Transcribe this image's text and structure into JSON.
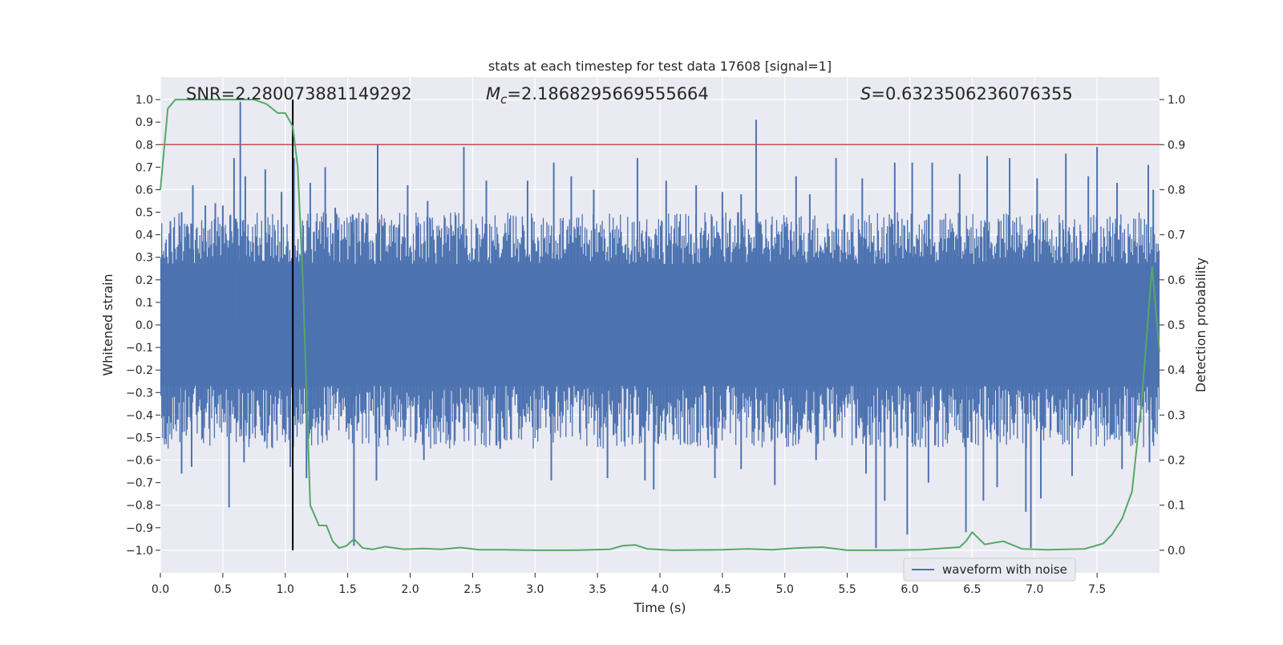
{
  "chart_data": {
    "type": "line",
    "title": "stats at each timestep for test data 17608 [signal=1]",
    "xlabel": "Time (s)",
    "ylabel": "Whitened strain",
    "y2label": "Detection probability",
    "xlim": [
      0.0,
      8.0
    ],
    "ylim": [
      -1.1,
      1.1
    ],
    "y2lim": [
      -0.05,
      1.05
    ],
    "xticks": [
      0.0,
      0.5,
      1.0,
      1.5,
      2.0,
      2.5,
      3.0,
      3.5,
      4.0,
      4.5,
      5.0,
      5.5,
      6.0,
      6.5,
      7.0,
      7.5
    ],
    "xtick_labels": [
      "0.0",
      "0.5",
      "1.0",
      "1.5",
      "2.0",
      "2.5",
      "3.0",
      "3.5",
      "4.0",
      "4.5",
      "5.0",
      "5.5",
      "6.0",
      "6.5",
      "7.0",
      "7.5"
    ],
    "yticks": [
      -1.0,
      -0.9,
      -0.8,
      -0.7,
      -0.6,
      -0.5,
      -0.4,
      -0.3,
      -0.2,
      -0.1,
      0.0,
      0.1,
      0.2,
      0.3,
      0.4,
      0.5,
      0.6,
      0.7,
      0.8,
      0.9,
      1.0
    ],
    "ytick_labels": [
      "−1.0",
      "−0.9",
      "−0.8",
      "−0.7",
      "−0.6",
      "−0.5",
      "−0.4",
      "−0.3",
      "−0.2",
      "−0.1",
      "0.0",
      "0.1",
      "0.2",
      "0.3",
      "0.4",
      "0.5",
      "0.6",
      "0.7",
      "0.8",
      "0.9",
      "1.0"
    ],
    "y2ticks": [
      0.0,
      0.1,
      0.2,
      0.3,
      0.4,
      0.5,
      0.6,
      0.7,
      0.8,
      0.9,
      1.0
    ],
    "y2tick_labels": [
      "0.0",
      "0.1",
      "0.2",
      "0.3",
      "0.4",
      "0.5",
      "0.6",
      "0.7",
      "0.8",
      "0.9",
      "1.0"
    ],
    "annotations": {
      "snr": "SNR=2.280073881149292",
      "mc_symbol": "M",
      "mc_subscript": "c",
      "mc_value": "=2.1868295669555664",
      "s_symbol": "S",
      "s_value": "=0.6323506236076355"
    },
    "legend": {
      "label": "waveform with noise",
      "loc": "lower-right"
    },
    "threshold_line": {
      "y2": 0.9,
      "color": "#c44e52"
    },
    "marker_line": {
      "x": 1.06,
      "y_from": -1.0,
      "y_to": 1.0,
      "color": "#000000"
    },
    "waveform": {
      "name": "waveform with noise",
      "color": "#4c72b0",
      "x_range": [
        0.0,
        8.0
      ],
      "core_amplitude": 0.27,
      "typical_envelope": 0.45,
      "spikes": [
        {
          "t": 0.08,
          "v": 0.46
        },
        {
          "t": 0.17,
          "v": 0.5
        },
        {
          "t": 0.26,
          "v": 0.62
        },
        {
          "t": 0.36,
          "v": 0.53
        },
        {
          "t": 0.44,
          "v": 0.54
        },
        {
          "t": 0.5,
          "v": 0.53
        },
        {
          "t": 0.59,
          "v": 0.74
        },
        {
          "t": 0.64,
          "v": 0.99
        },
        {
          "t": 0.68,
          "v": 0.66
        },
        {
          "t": 0.84,
          "v": 0.69
        },
        {
          "t": 0.97,
          "v": 0.59
        },
        {
          "t": 1.07,
          "v": 0.74
        },
        {
          "t": 1.2,
          "v": 0.63
        },
        {
          "t": 1.32,
          "v": 0.7
        },
        {
          "t": 1.4,
          "v": 0.52
        },
        {
          "t": 1.54,
          "v": 0.49
        },
        {
          "t": 1.74,
          "v": 0.8
        },
        {
          "t": 1.98,
          "v": 0.62
        },
        {
          "t": 2.14,
          "v": 0.55
        },
        {
          "t": 2.43,
          "v": 0.79
        },
        {
          "t": 2.61,
          "v": 0.64
        },
        {
          "t": 2.94,
          "v": 0.64
        },
        {
          "t": 3.15,
          "v": 0.72
        },
        {
          "t": 3.29,
          "v": 0.66
        },
        {
          "t": 3.47,
          "v": 0.6
        },
        {
          "t": 3.82,
          "v": 0.74
        },
        {
          "t": 4.05,
          "v": 0.64
        },
        {
          "t": 4.29,
          "v": 0.62
        },
        {
          "t": 4.5,
          "v": 0.59
        },
        {
          "t": 4.65,
          "v": 0.58
        },
        {
          "t": 4.77,
          "v": 0.91
        },
        {
          "t": 5.09,
          "v": 0.66
        },
        {
          "t": 5.2,
          "v": 0.58
        },
        {
          "t": 5.41,
          "v": 0.74
        },
        {
          "t": 5.62,
          "v": 0.65
        },
        {
          "t": 5.88,
          "v": 0.72
        },
        {
          "t": 6.02,
          "v": 0.72
        },
        {
          "t": 6.18,
          "v": 0.72
        },
        {
          "t": 6.4,
          "v": 0.67
        },
        {
          "t": 6.62,
          "v": 0.75
        },
        {
          "t": 6.8,
          "v": 0.74
        },
        {
          "t": 7.02,
          "v": 0.65
        },
        {
          "t": 7.25,
          "v": 0.76
        },
        {
          "t": 7.43,
          "v": 0.66
        },
        {
          "t": 7.5,
          "v": 0.79
        },
        {
          "t": 7.66,
          "v": 0.63
        },
        {
          "t": 7.91,
          "v": 0.71
        },
        {
          "t": 7.95,
          "v": 0.6
        },
        {
          "t": 0.17,
          "v": -0.66
        },
        {
          "t": 0.25,
          "v": -0.63
        },
        {
          "t": 0.55,
          "v": -0.81
        },
        {
          "t": 0.67,
          "v": -0.61
        },
        {
          "t": 1.04,
          "v": -0.63
        },
        {
          "t": 1.17,
          "v": -0.68
        },
        {
          "t": 1.55,
          "v": -0.98
        },
        {
          "t": 1.73,
          "v": -0.69
        },
        {
          "t": 2.11,
          "v": -0.6
        },
        {
          "t": 2.72,
          "v": -0.55
        },
        {
          "t": 3.13,
          "v": -0.69
        },
        {
          "t": 3.58,
          "v": -0.68
        },
        {
          "t": 3.88,
          "v": -0.69
        },
        {
          "t": 3.95,
          "v": -0.73
        },
        {
          "t": 4.44,
          "v": -0.68
        },
        {
          "t": 4.65,
          "v": -0.64
        },
        {
          "t": 4.92,
          "v": -0.71
        },
        {
          "t": 5.25,
          "v": -0.6
        },
        {
          "t": 5.65,
          "v": -0.66
        },
        {
          "t": 5.73,
          "v": -0.99
        },
        {
          "t": 5.8,
          "v": -0.78
        },
        {
          "t": 5.98,
          "v": -0.93
        },
        {
          "t": 6.15,
          "v": -0.7
        },
        {
          "t": 6.45,
          "v": -0.92
        },
        {
          "t": 6.59,
          "v": -0.78
        },
        {
          "t": 6.7,
          "v": -0.72
        },
        {
          "t": 6.93,
          "v": -0.83
        },
        {
          "t": 6.97,
          "v": -0.99
        },
        {
          "t": 7.05,
          "v": -0.77
        },
        {
          "t": 7.3,
          "v": -0.67
        },
        {
          "t": 7.7,
          "v": -0.64
        },
        {
          "t": 7.92,
          "v": -0.61
        }
      ]
    },
    "detection_probability": {
      "name": "detection probability",
      "axis": "y2",
      "color": "#55a868",
      "x": [
        0.0,
        0.06,
        0.12,
        0.25,
        0.5,
        0.75,
        0.85,
        0.94,
        1.0,
        1.06,
        1.1,
        1.14,
        1.2,
        1.27,
        1.33,
        1.38,
        1.43,
        1.49,
        1.55,
        1.62,
        1.7,
        1.8,
        1.95,
        2.1,
        2.25,
        2.4,
        2.55,
        2.75,
        3.0,
        3.3,
        3.6,
        3.7,
        3.8,
        3.9,
        4.1,
        4.5,
        4.7,
        4.9,
        5.1,
        5.3,
        5.5,
        5.8,
        6.1,
        6.4,
        6.45,
        6.5,
        6.6,
        6.75,
        6.9,
        7.1,
        7.4,
        7.55,
        7.62,
        7.7,
        7.78,
        7.86,
        7.94,
        8.0
      ],
      "y": [
        0.8,
        0.98,
        1.0,
        1.0,
        1.0,
        1.0,
        0.99,
        0.97,
        0.97,
        0.94,
        0.85,
        0.6,
        0.1,
        0.055,
        0.055,
        0.02,
        0.005,
        0.01,
        0.025,
        0.005,
        0.002,
        0.008,
        0.002,
        0.004,
        0.002,
        0.006,
        0.001,
        0.001,
        0.0,
        0.0,
        0.002,
        0.01,
        0.012,
        0.003,
        0.0,
        0.001,
        0.003,
        0.001,
        0.005,
        0.007,
        0.0,
        0.0,
        0.001,
        0.007,
        0.02,
        0.04,
        0.013,
        0.02,
        0.003,
        0.001,
        0.003,
        0.015,
        0.035,
        0.07,
        0.13,
        0.34,
        0.63,
        0.44
      ]
    }
  }
}
